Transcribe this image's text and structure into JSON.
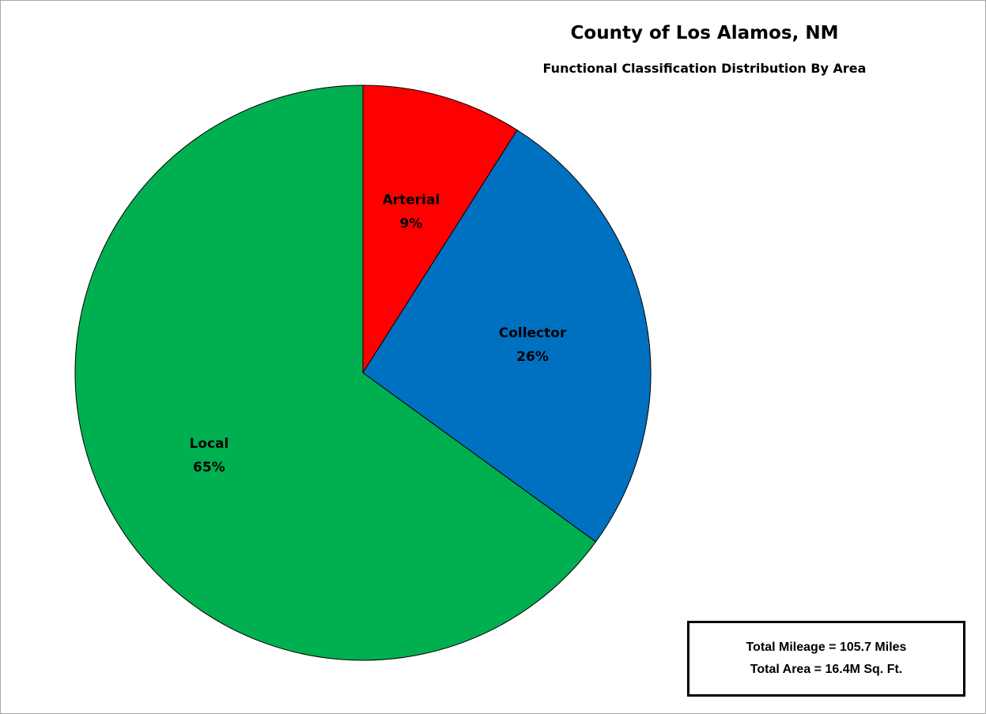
{
  "chart_data": {
    "type": "pie",
    "title": "County of Los Alamos, NM",
    "subtitle": "Functional Classification Distribution By Area",
    "slices": [
      {
        "name": "Arterial",
        "value": 9,
        "label": "9%",
        "color": "#ff0000"
      },
      {
        "name": "Collector",
        "value": 26,
        "label": "26%",
        "color": "#0070c0"
      },
      {
        "name": "Local",
        "value": 65,
        "label": "65%",
        "color": "#00b050"
      }
    ],
    "start": "12 o'clock",
    "direction": "clockwise",
    "legend": "none",
    "annotations": [
      "Total Mileage = 105.7 Miles",
      "Total Area = 16.4M Sq. Ft."
    ]
  }
}
